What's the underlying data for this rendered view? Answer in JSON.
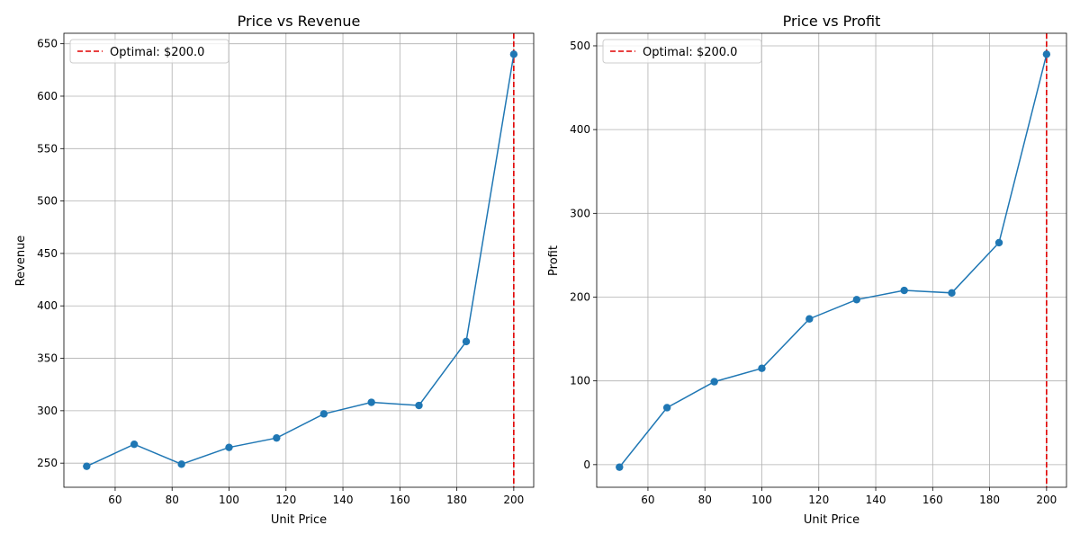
{
  "colors": {
    "series": "#1f77b4",
    "optimal": "#e00000",
    "grid": "#b0b0b0"
  },
  "chart_data": [
    {
      "type": "line",
      "title": "Price vs Revenue",
      "xlabel": "Unit Price",
      "ylabel": "Revenue",
      "xlim": [
        42,
        207
      ],
      "ylim": [
        227,
        660
      ],
      "xticks": [
        60,
        80,
        100,
        120,
        140,
        160,
        180,
        200
      ],
      "yticks": [
        250,
        300,
        350,
        400,
        450,
        500,
        550,
        600,
        650
      ],
      "grid": true,
      "legend_position": "top-left",
      "series": [
        {
          "x": [
            50,
            66.7,
            83.3,
            100,
            116.7,
            133.3,
            150,
            166.7,
            183.3,
            200
          ],
          "y": [
            247,
            268,
            249,
            265,
            274,
            297,
            308,
            305,
            366,
            640
          ]
        }
      ],
      "vline": {
        "x": 200,
        "label": "Optimal: $200.0"
      }
    },
    {
      "type": "line",
      "title": "Price vs Profit",
      "xlabel": "Unit Price",
      "ylabel": "Profit",
      "xlim": [
        42,
        207
      ],
      "ylim": [
        -27,
        515
      ],
      "xticks": [
        60,
        80,
        100,
        120,
        140,
        160,
        180,
        200
      ],
      "yticks": [
        0,
        100,
        200,
        300,
        400,
        500
      ],
      "grid": true,
      "legend_position": "top-left",
      "series": [
        {
          "x": [
            50,
            66.7,
            83.3,
            100,
            116.7,
            133.3,
            150,
            166.7,
            183.3,
            200
          ],
          "y": [
            -3,
            68,
            99,
            115,
            174,
            197,
            208,
            205,
            265,
            490
          ]
        }
      ],
      "vline": {
        "x": 200,
        "label": "Optimal: $200.0"
      }
    }
  ]
}
